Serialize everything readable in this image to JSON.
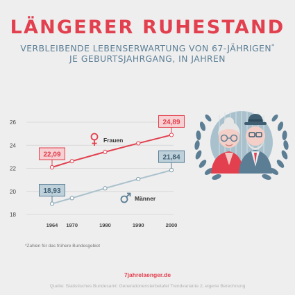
{
  "header": {
    "title": "LÄNGERER RUHESTAND",
    "subtitle_line1": "VERBLEIBENDE LEBENSERWARTUNG VON 67-JÄHRIGEN",
    "subtitle_mark": "*",
    "subtitle_line2": "JE GEBURTSJAHRGANG, IN JAHREN"
  },
  "chart_data": {
    "type": "line",
    "x": [
      1964,
      1970,
      1980,
      1990,
      2000
    ],
    "ylim": [
      18,
      26
    ],
    "yticks": [
      18,
      20,
      22,
      24,
      26
    ],
    "grid": true,
    "series": [
      {
        "name": "Frauen",
        "color": "#e2404f",
        "values": [
          22.09,
          22.62,
          23.42,
          24.17,
          24.89
        ],
        "start_label": "22,09",
        "end_label": "24,89",
        "icon": "female-symbol-icon"
      },
      {
        "name": "Männer",
        "color": "#a9c1cc",
        "values": [
          18.93,
          19.42,
          20.27,
          21.07,
          21.84
        ],
        "start_label": "18,93",
        "end_label": "21,84",
        "icon": "male-symbol-icon"
      }
    ]
  },
  "footnote": "*Zahlen für das frühere Bundesgebiet",
  "brand": "7jahrelaenger.de",
  "source": "Quelle: Statistisches Bundesamt: Generationensterbetafel Trendvariante 2, eigene Berechnung",
  "illustration": {
    "icon": "elderly-couple-laurel-icon"
  }
}
